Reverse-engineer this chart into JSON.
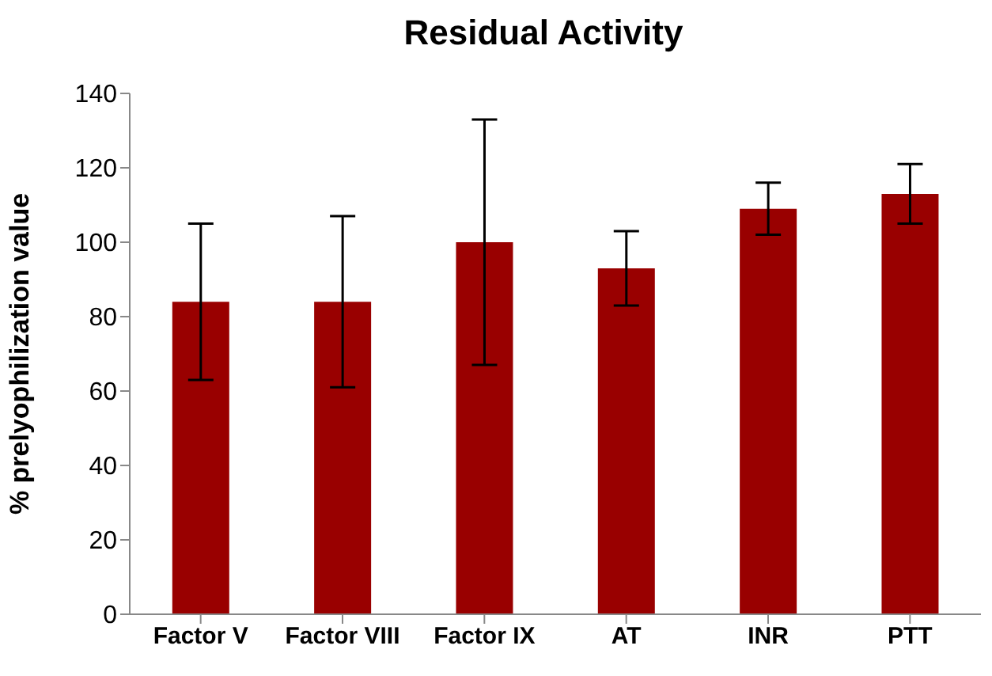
{
  "chart_data": {
    "type": "bar",
    "title": "Residual Activity",
    "ylabel": "% prelyophilization value",
    "categories": [
      "Factor V",
      "Factor VIII",
      "Factor IX",
      "AT",
      "INR",
      "PTT"
    ],
    "values": [
      84,
      84,
      100,
      93,
      109,
      113
    ],
    "errors": [
      [
        63,
        105
      ],
      [
        61,
        107
      ],
      [
        67,
        133
      ],
      [
        83,
        103
      ],
      [
        102,
        116
      ],
      [
        105,
        121
      ]
    ],
    "color": "#990000",
    "ylim": [
      0,
      140
    ],
    "yticks": [
      0,
      20,
      40,
      60,
      80,
      100,
      120,
      140
    ],
    "grid": false,
    "legend": false
  }
}
